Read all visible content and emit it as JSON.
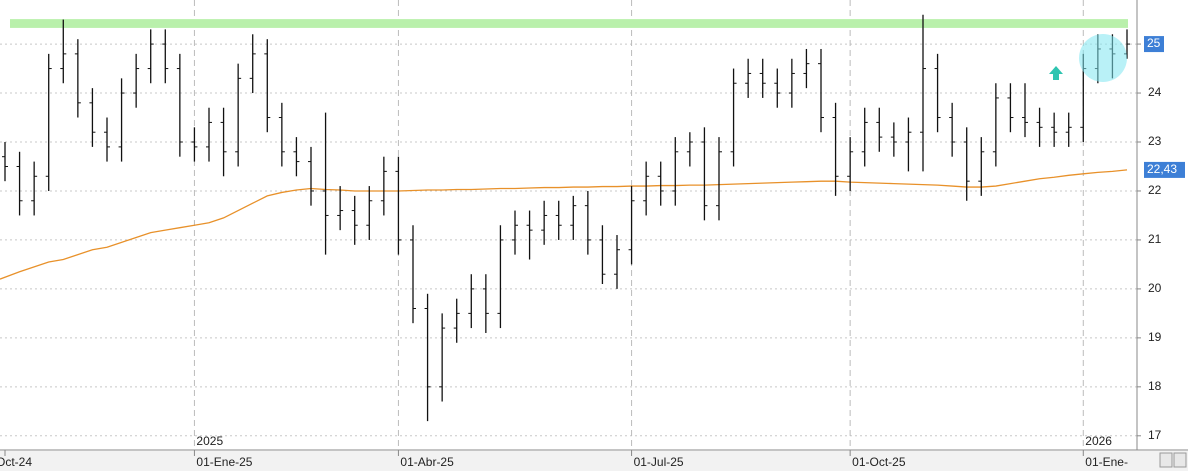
{
  "chart_data": {
    "type": "ohlc",
    "categories": [
      "Oct-24",
      null,
      null,
      null,
      null,
      null,
      null,
      null,
      null,
      null,
      null,
      null,
      null,
      "01-Ene-25",
      null,
      null,
      null,
      null,
      null,
      null,
      null,
      null,
      null,
      null,
      null,
      null,
      null,
      "01-Abr-25",
      null,
      null,
      null,
      null,
      null,
      null,
      null,
      null,
      null,
      null,
      null,
      null,
      null,
      null,
      null,
      "01-Jul-25",
      null,
      null,
      null,
      null,
      null,
      null,
      null,
      null,
      null,
      null,
      null,
      null,
      null,
      null,
      "01-Oct-25",
      null,
      null,
      null,
      null,
      null,
      null,
      null,
      null,
      null,
      null,
      null,
      null,
      null,
      null,
      null,
      "01-Ene-",
      null,
      null,
      null
    ],
    "year_labels": [
      "2025",
      "2026"
    ],
    "color": "#111111",
    "open": [
      22.7,
      22.5,
      21.8,
      22.3,
      24.5,
      24.8,
      23.8,
      23.2,
      22.9,
      24.0,
      24.5,
      25.0,
      24.5,
      23.0,
      22.9,
      23.4,
      22.8,
      24.3,
      24.8,
      23.5,
      22.8,
      22.6,
      22.0,
      21.5,
      21.6,
      21.3,
      21.8,
      22.4,
      21.0,
      19.6,
      18.0,
      19.2,
      19.5,
      20.0,
      19.5,
      21.0,
      21.3,
      21.2,
      21.5,
      21.3,
      21.7,
      21.0,
      20.3,
      20.8,
      21.8,
      22.3,
      22.0,
      22.8,
      23.0,
      21.7,
      22.8,
      24.2,
      24.4,
      24.2,
      24.0,
      24.4,
      24.6,
      23.5,
      22.3,
      22.8,
      23.4,
      23.1,
      23.0,
      23.2,
      24.5,
      23.5,
      23.0,
      22.2,
      22.8,
      23.9,
      23.5,
      23.4,
      23.3,
      23.2,
      23.3,
      24.5,
      24.9,
      24.8
    ],
    "high": [
      23.0,
      22.8,
      22.6,
      24.8,
      25.5,
      25.1,
      24.1,
      23.5,
      24.3,
      24.8,
      25.3,
      25.3,
      24.8,
      23.3,
      23.7,
      23.7,
      24.6,
      25.2,
      25.1,
      23.8,
      23.1,
      22.9,
      23.6,
      22.1,
      21.9,
      22.1,
      22.7,
      22.7,
      21.3,
      19.9,
      19.5,
      19.8,
      20.3,
      20.3,
      21.3,
      21.6,
      21.6,
      21.8,
      21.8,
      21.9,
      22.0,
      21.3,
      21.1,
      22.1,
      22.6,
      22.6,
      23.1,
      23.2,
      23.3,
      23.1,
      24.5,
      24.7,
      24.7,
      24.5,
      24.7,
      24.9,
      24.9,
      23.8,
      23.1,
      23.7,
      23.7,
      23.4,
      23.5,
      25.6,
      24.8,
      23.8,
      23.3,
      23.1,
      24.2,
      24.2,
      24.2,
      23.7,
      23.6,
      23.6,
      24.8,
      25.2,
      25.2,
      25.3
    ],
    "low": [
      22.2,
      21.5,
      21.5,
      22.0,
      24.2,
      23.5,
      22.9,
      22.6,
      22.6,
      23.7,
      24.2,
      24.2,
      22.7,
      22.6,
      22.6,
      22.3,
      22.5,
      24.0,
      23.2,
      22.5,
      22.3,
      21.7,
      20.7,
      21.2,
      20.9,
      21.0,
      21.5,
      20.7,
      19.3,
      17.3,
      17.7,
      18.9,
      19.2,
      19.1,
      19.2,
      20.7,
      20.6,
      20.9,
      21.0,
      21.0,
      20.7,
      20.1,
      20.0,
      20.5,
      21.5,
      21.7,
      21.7,
      22.5,
      21.4,
      21.4,
      22.5,
      23.9,
      23.9,
      23.7,
      23.7,
      24.1,
      23.2,
      21.9,
      22.0,
      22.5,
      22.8,
      22.7,
      22.4,
      22.4,
      23.2,
      22.7,
      21.8,
      21.9,
      22.5,
      23.2,
      23.1,
      22.9,
      22.9,
      22.9,
      23.0,
      24.2,
      24.3,
      24.7
    ],
    "close": [
      22.5,
      21.8,
      22.3,
      24.5,
      24.8,
      23.8,
      23.2,
      22.9,
      24.0,
      24.5,
      25.0,
      24.5,
      23.0,
      22.9,
      23.4,
      22.8,
      24.3,
      24.8,
      23.5,
      22.8,
      22.6,
      22.0,
      21.5,
      21.6,
      21.3,
      21.8,
      22.4,
      21.0,
      19.6,
      18.0,
      19.2,
      19.5,
      20.0,
      19.5,
      21.0,
      21.3,
      21.2,
      21.5,
      21.3,
      21.7,
      21.0,
      20.3,
      20.8,
      21.8,
      22.3,
      22.0,
      22.8,
      23.0,
      21.7,
      22.8,
      24.2,
      24.4,
      24.2,
      24.0,
      24.4,
      24.6,
      23.5,
      22.3,
      22.8,
      23.4,
      23.1,
      23.0,
      23.2,
      24.5,
      23.5,
      23.0,
      22.2,
      22.8,
      23.9,
      23.5,
      23.4,
      23.3,
      23.2,
      23.3,
      24.5,
      24.9,
      24.8,
      25.0
    ],
    "moving_average": {
      "color": "#e8912a",
      "values": [
        20.2,
        20.35,
        20.45,
        20.55,
        20.6,
        20.7,
        20.8,
        20.85,
        20.95,
        21.05,
        21.15,
        21.2,
        21.25,
        21.3,
        21.35,
        21.45,
        21.6,
        21.75,
        21.9,
        21.97,
        22.02,
        22.05,
        22.03,
        22.02,
        22.0,
        22.0,
        22.0,
        22.0,
        22.01,
        22.02,
        22.02,
        22.03,
        22.03,
        22.04,
        22.05,
        22.05,
        22.06,
        22.07,
        22.07,
        22.08,
        22.08,
        22.09,
        22.09,
        22.1,
        22.1,
        22.11,
        22.11,
        22.12,
        22.12,
        22.13,
        22.14,
        22.15,
        22.16,
        22.17,
        22.18,
        22.19,
        22.2,
        22.2,
        22.18,
        22.17,
        22.16,
        22.15,
        22.14,
        22.13,
        22.12,
        22.1,
        22.08,
        22.08,
        22.1,
        22.15,
        22.2,
        22.25,
        22.28,
        22.32,
        22.35,
        22.38,
        22.4,
        22.43
      ],
      "tag": {
        "value": 22.43,
        "label": "22,43"
      }
    },
    "price_tag": {
      "value": 25,
      "label": "25"
    },
    "resistance_zone": {
      "range": [
        25.33,
        25.51
      ],
      "color": "#b9f0ab"
    },
    "ylim": [
      16.71,
      25.9
    ],
    "yticks": [
      17,
      18,
      19,
      20,
      21,
      22,
      23,
      24,
      25
    ],
    "grid": true
  }
}
